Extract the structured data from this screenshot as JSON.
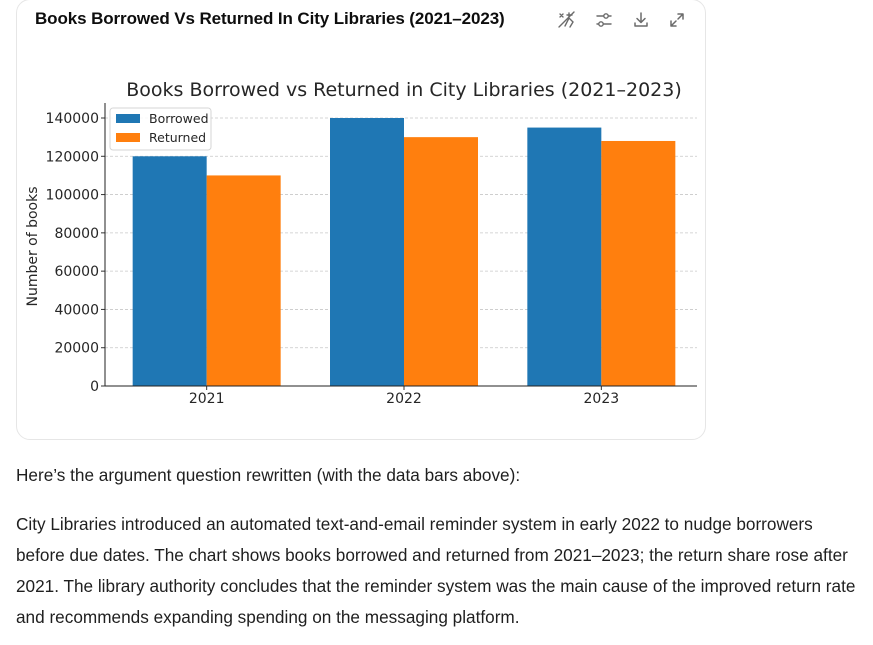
{
  "card": {
    "title": "Books Borrowed Vs Returned In City Libraries (2021–2023)",
    "tools": [
      {
        "name": "interactive-toggle-icon"
      },
      {
        "name": "chart-settings-icon"
      },
      {
        "name": "download-icon"
      },
      {
        "name": "expand-icon"
      }
    ]
  },
  "chart_data": {
    "type": "bar",
    "title": "Books Borrowed vs Returned in City Libraries (2021–2023)",
    "xlabel": "",
    "ylabel": "Number of books",
    "categories": [
      "2021",
      "2022",
      "2023"
    ],
    "series": [
      {
        "name": "Borrowed",
        "color": "#1f77b4",
        "values": [
          120000,
          140000,
          135000
        ]
      },
      {
        "name": "Returned",
        "color": "#ff7f0e",
        "values": [
          110000,
          130000,
          128000
        ]
      }
    ],
    "ylim": [
      0,
      140000
    ],
    "yticks": [
      0,
      20000,
      40000,
      60000,
      80000,
      100000,
      120000,
      140000
    ],
    "grid": true,
    "legend_position": "top-left"
  },
  "content": {
    "intro": "Here’s the argument question rewritten (with the data bars above):",
    "paragraph": "City Libraries introduced an automated text-and-email reminder system in early 2022 to nudge borrowers before due dates. The chart shows books borrowed and returned from 2021–2023; the return share rose after 2021. The library authority concludes that the reminder system was the main cause of the improved return rate and recommends expanding spending on the messaging platform."
  }
}
